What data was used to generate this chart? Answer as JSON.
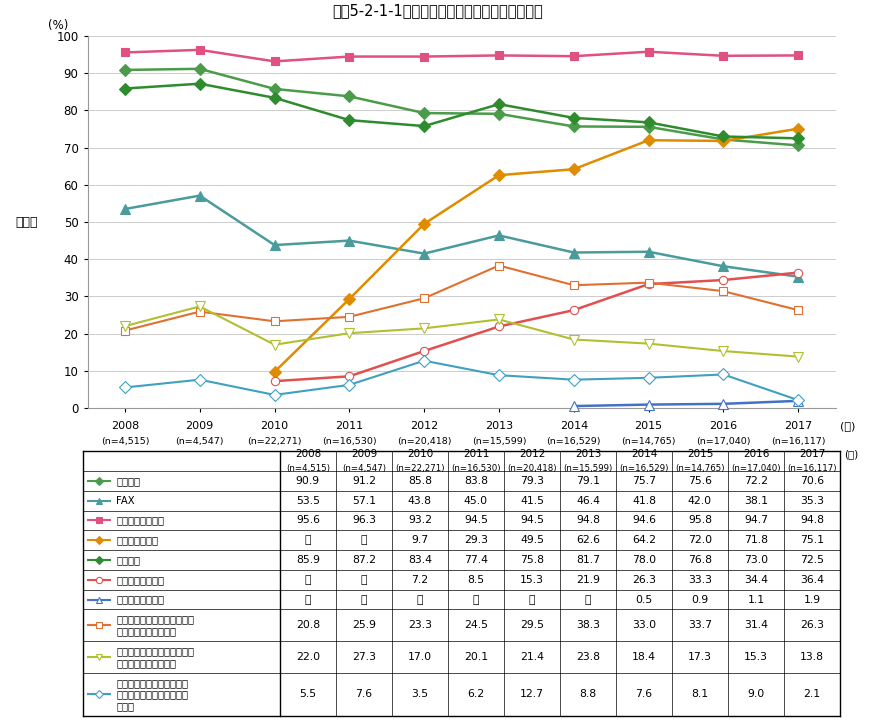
{
  "title": "図表5-2-1-1　情報通信機器の世帯保有率の推移",
  "ylabel": "保有率",
  "years": [
    2008,
    2009,
    2010,
    2011,
    2012,
    2013,
    2014,
    2015,
    2016,
    2017
  ],
  "n_labels": [
    "(n=4,515)",
    "(n=4,547)",
    "(n=22,271)",
    "(n=16,530)",
    "(n=20,418)",
    "(n=15,599)",
    "(n=16,529)",
    "(n=14,765)",
    "(n=17,040)",
    "(n=16,117)"
  ],
  "series": [
    {
      "label": "固定電話",
      "color": "#4a9b4a",
      "marker": "D",
      "ms": 6,
      "lw": 1.8,
      "mfc": "#4a9b4a",
      "data": [
        90.9,
        91.2,
        85.8,
        83.8,
        79.3,
        79.1,
        75.7,
        75.6,
        72.2,
        70.6
      ]
    },
    {
      "label": "FAX",
      "color": "#4a9b9b",
      "marker": "^",
      "ms": 7,
      "lw": 1.8,
      "mfc": "#4a9b9b",
      "data": [
        53.5,
        57.1,
        43.8,
        45.0,
        41.5,
        46.4,
        41.8,
        42.0,
        38.1,
        35.3
      ]
    },
    {
      "label": "モバイル端末全体",
      "color": "#e05080",
      "marker": "s",
      "ms": 6,
      "lw": 1.8,
      "mfc": "#e05080",
      "data": [
        95.6,
        96.3,
        93.2,
        94.5,
        94.5,
        94.8,
        94.6,
        95.8,
        94.7,
        94.8
      ]
    },
    {
      "label": "スマートフォン",
      "color": "#e08c00",
      "marker": "D",
      "ms": 6,
      "lw": 1.8,
      "mfc": "#e08c00",
      "data": [
        null,
        null,
        9.7,
        29.3,
        49.5,
        62.6,
        64.2,
        72.0,
        71.8,
        75.1
      ]
    },
    {
      "label": "パソコン",
      "color": "#2e8b2e",
      "marker": "D",
      "ms": 6,
      "lw": 1.8,
      "mfc": "#2e8b2e",
      "data": [
        85.9,
        87.2,
        83.4,
        77.4,
        75.8,
        81.7,
        78.0,
        76.8,
        73.0,
        72.5
      ]
    },
    {
      "label": "タブレット型端末",
      "color": "#e05050",
      "marker": "o",
      "ms": 6,
      "lw": 1.8,
      "mfc": "white",
      "data": [
        null,
        null,
        7.2,
        8.5,
        15.3,
        21.9,
        26.3,
        33.3,
        34.4,
        36.4
      ]
    },
    {
      "label": "ウェアラブル端末",
      "color": "#4472c4",
      "marker": "^",
      "ms": 7,
      "lw": 1.8,
      "mfc": "white",
      "data": [
        null,
        null,
        null,
        null,
        null,
        null,
        0.5,
        0.9,
        1.1,
        1.9
      ]
    },
    {
      "label": "インターネットに接続できる家庭用テレビゲーム機",
      "color": "#e07030",
      "marker": "s",
      "ms": 6,
      "lw": 1.5,
      "mfc": "white",
      "data": [
        20.8,
        25.9,
        23.3,
        24.5,
        29.5,
        38.3,
        33.0,
        33.7,
        31.4,
        26.3
      ]
    },
    {
      "label": "インターネットに接続できる携帯型音楽プレイヤー",
      "color": "#b0c030",
      "marker": "v",
      "ms": 7,
      "lw": 1.5,
      "mfc": "white",
      "data": [
        22.0,
        27.3,
        17.0,
        20.1,
        21.4,
        23.8,
        18.4,
        17.3,
        15.3,
        13.8
      ]
    },
    {
      "label": "その他インターネットに接続できる家電（スマート家電）等",
      "color": "#40a0c0",
      "marker": "D",
      "ms": 6,
      "lw": 1.5,
      "mfc": "white",
      "data": [
        5.5,
        7.6,
        3.5,
        6.2,
        12.7,
        8.8,
        7.6,
        8.1,
        9.0,
        2.1
      ]
    }
  ],
  "table_rows": [
    [
      "固定電話",
      "90.9",
      "91.2",
      "85.8",
      "83.8",
      "79.3",
      "79.1",
      "75.7",
      "75.6",
      "72.2",
      "70.6"
    ],
    [
      "FAX",
      "53.5",
      "57.1",
      "43.8",
      "45.0",
      "41.5",
      "46.4",
      "41.8",
      "42.0",
      "38.1",
      "35.3"
    ],
    [
      "モバイル端末全体",
      "95.6",
      "96.3",
      "93.2",
      "94.5",
      "94.5",
      "94.8",
      "94.6",
      "95.8",
      "94.7",
      "94.8"
    ],
    [
      "スマートフォン",
      "－",
      "－",
      "9.7",
      "29.3",
      "49.5",
      "62.6",
      "64.2",
      "72.0",
      "71.8",
      "75.1"
    ],
    [
      "パソコン",
      "85.9",
      "87.2",
      "83.4",
      "77.4",
      "75.8",
      "81.7",
      "78.0",
      "76.8",
      "73.0",
      "72.5"
    ],
    [
      "タブレット型端末",
      "－",
      "－",
      "7.2",
      "8.5",
      "15.3",
      "21.9",
      "26.3",
      "33.3",
      "34.4",
      "36.4"
    ],
    [
      "ウェアラブル端末",
      "－",
      "－",
      "－",
      "－",
      "－",
      "－",
      "0.5",
      "0.9",
      "1.1",
      "1.9"
    ],
    [
      "インターネットに接続できる\n家庭用テレビゲーム機",
      "20.8",
      "25.9",
      "23.3",
      "24.5",
      "29.5",
      "38.3",
      "33.0",
      "33.7",
      "31.4",
      "26.3"
    ],
    [
      "インターネットに接続できる\n携帯型音楽プレイヤー",
      "22.0",
      "27.3",
      "17.0",
      "20.1",
      "21.4",
      "23.8",
      "18.4",
      "17.3",
      "15.3",
      "13.8"
    ],
    [
      "その他インターネットに接\n続できる家電（スマート家\n電）等",
      "5.5",
      "7.6",
      "3.5",
      "6.2",
      "12.7",
      "8.8",
      "7.6",
      "8.1",
      "9.0",
      "2.1"
    ]
  ],
  "ylim": [
    0,
    100
  ],
  "yticks": [
    0,
    10,
    20,
    30,
    40,
    50,
    60,
    70,
    80,
    90,
    100
  ],
  "unit_label": "(%)",
  "year_unit": "(年)",
  "bg": "#ffffff",
  "grid_color": "#cccccc",
  "border_color": "#999999"
}
